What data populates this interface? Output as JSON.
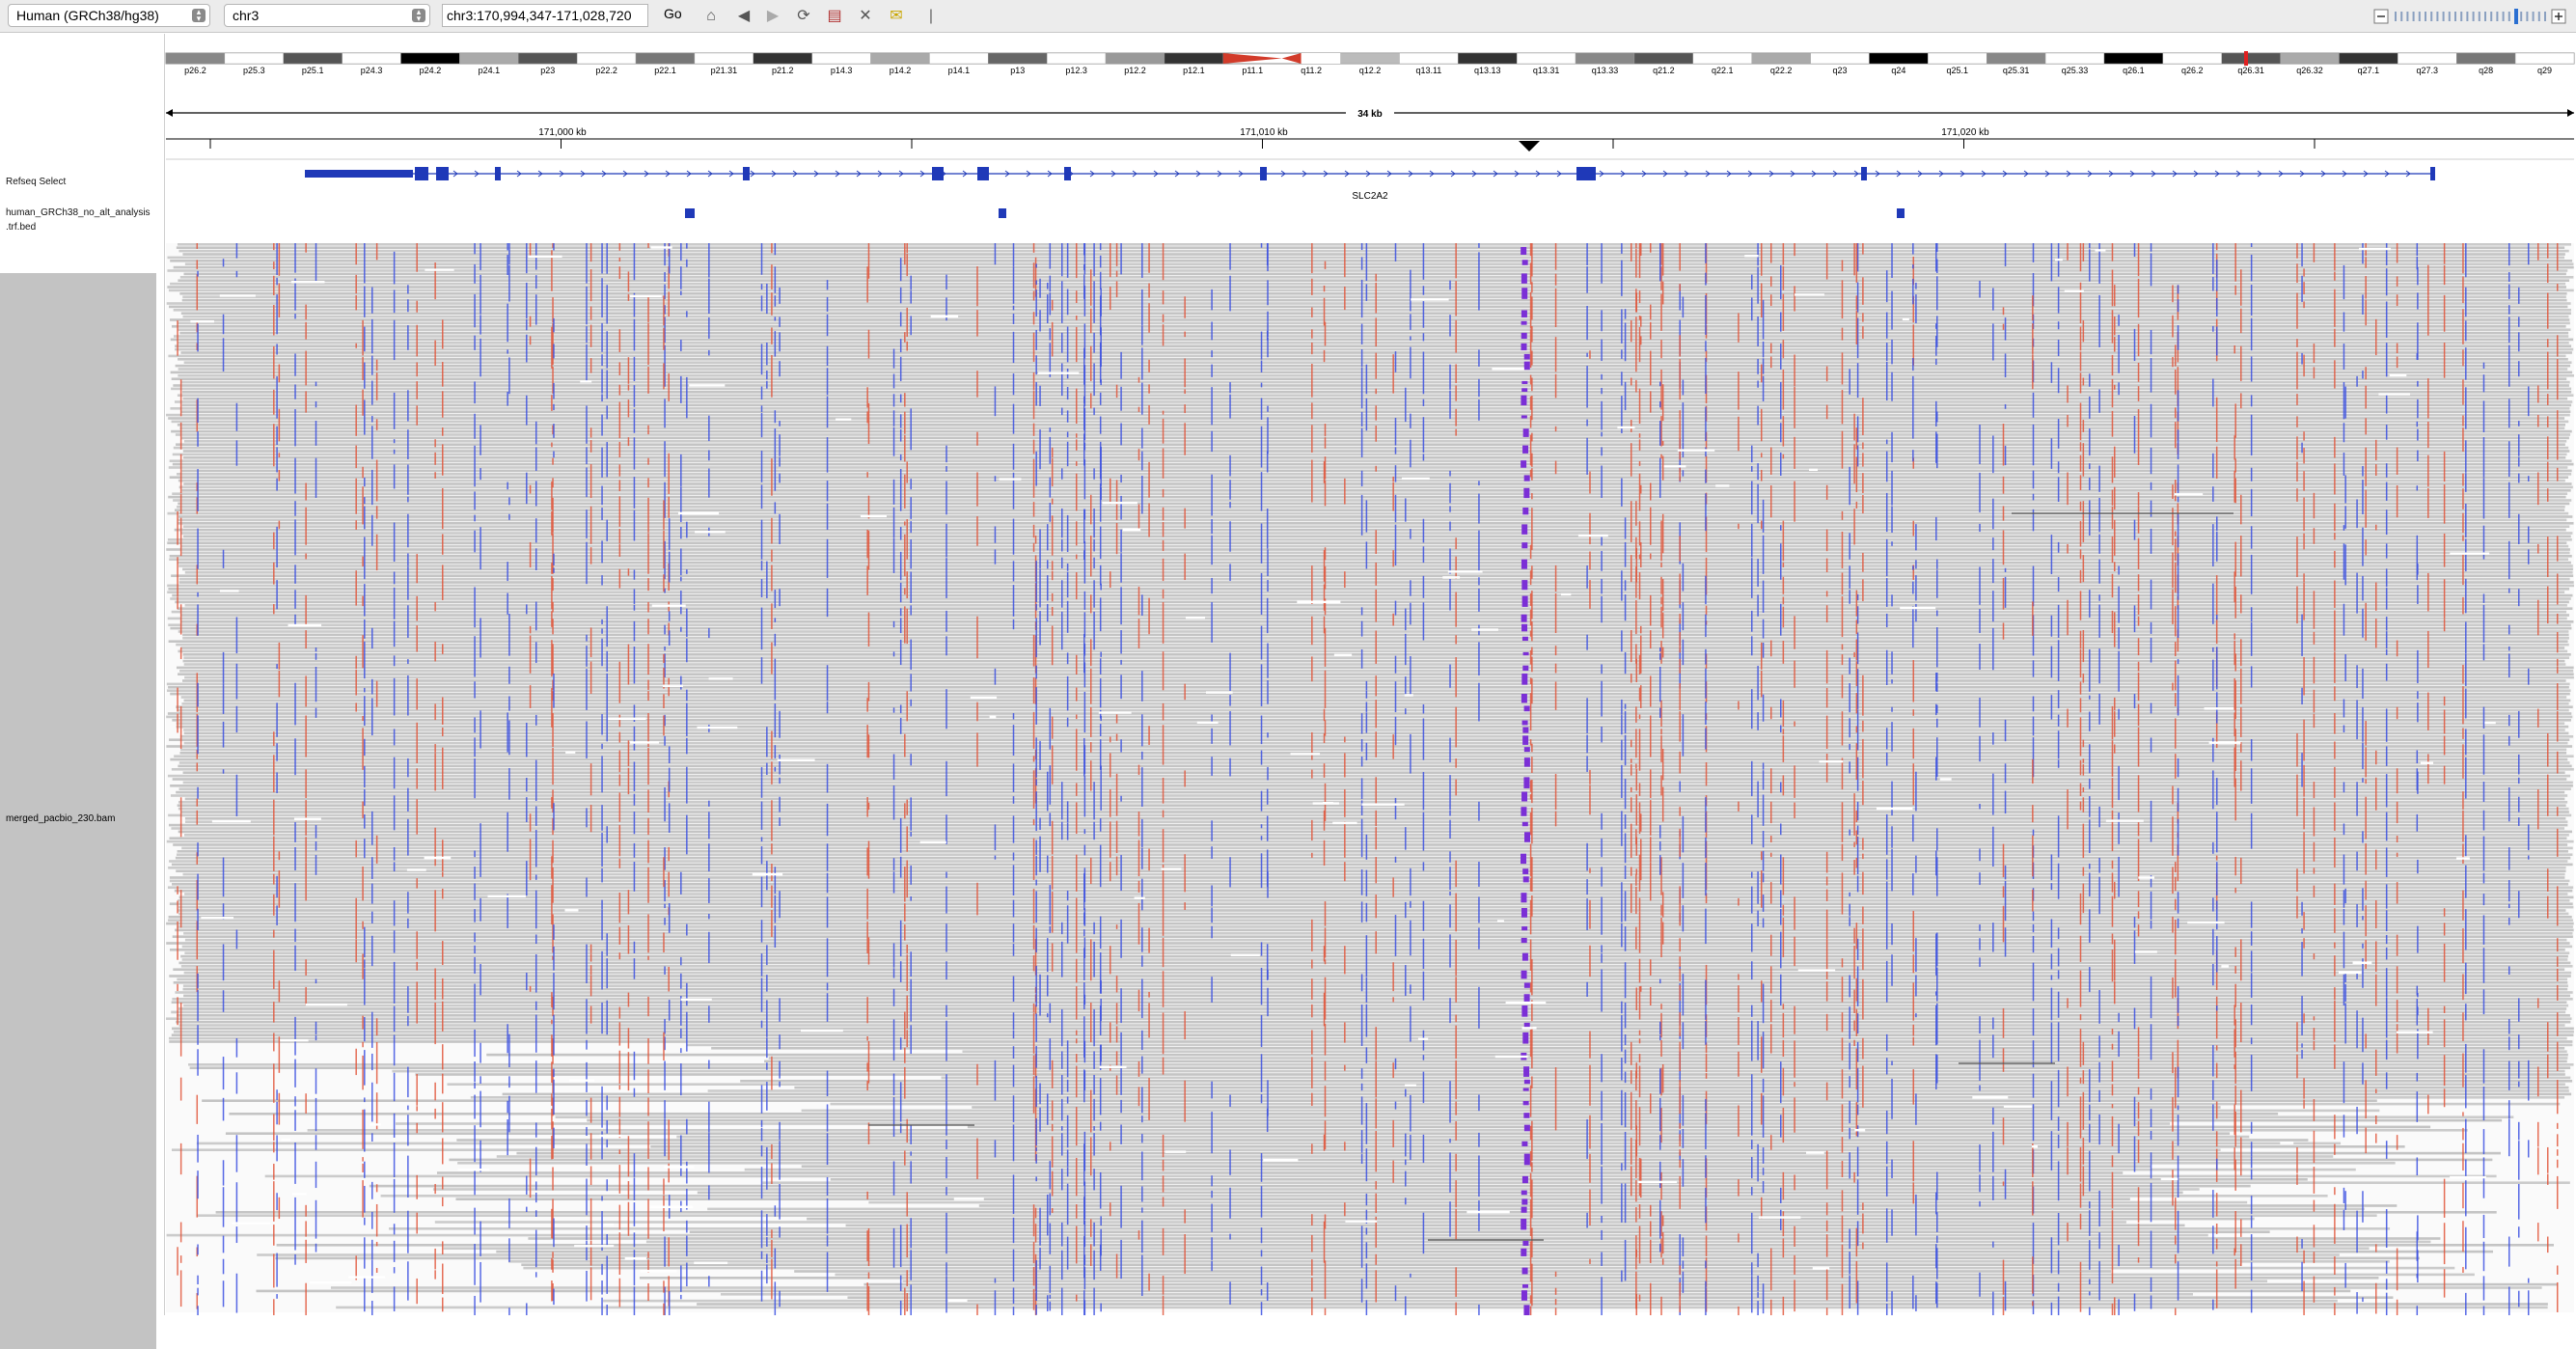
{
  "toolbar": {
    "genome": "Human (GRCh38/hg38)",
    "chromosome": "chr3",
    "locus": "chr3:170,994,347-171,028,720",
    "go_label": "Go"
  },
  "ideogram": {
    "bands": [
      "p26.2",
      "p25.3",
      "p25.1",
      "p24.3",
      "p24.2",
      "p24.1",
      "p23",
      "p22.2",
      "p22.1",
      "p21.31",
      "p21.2",
      "p14.3",
      "p14.2",
      "p14.1",
      "p13",
      "p12.3",
      "p12.2",
      "p12.1",
      "p11.1",
      "q11.2",
      "q12.2",
      "q13.11",
      "q13.13",
      "q13.31",
      "q13.33",
      "q21.2",
      "q22.1",
      "q22.2",
      "q23",
      "q24",
      "q25.1",
      "q25.31",
      "q25.33",
      "q26.1",
      "q26.2",
      "q26.31",
      "q26.32",
      "q27.1",
      "q27.3",
      "q28",
      "q29"
    ]
  },
  "ruler": {
    "span": "34 kb",
    "ticks": [
      "171,000 kb",
      "171,010 kb",
      "171,020 kb"
    ]
  },
  "tracks": {
    "refseq_label": "Refseq Select",
    "gene_name": "SLC2A2",
    "bed_label_line1": "human_GRCh38_no_alt_analysis",
    "bed_label_line2": ".trf.bed",
    "bam_label": "merged_pacbio_230.bam"
  },
  "colors": {
    "read_grey": "#c6c6c6",
    "mismatch_blue": "#3a4fe0",
    "mismatch_red": "#e0553a",
    "insertion_purple": "#7b2fd6",
    "gene_blue": "#1f39b8"
  },
  "icons": [
    "home-icon",
    "back-icon",
    "forward-icon",
    "refresh-icon",
    "roi-icon",
    "close-icon",
    "popup-icon"
  ]
}
